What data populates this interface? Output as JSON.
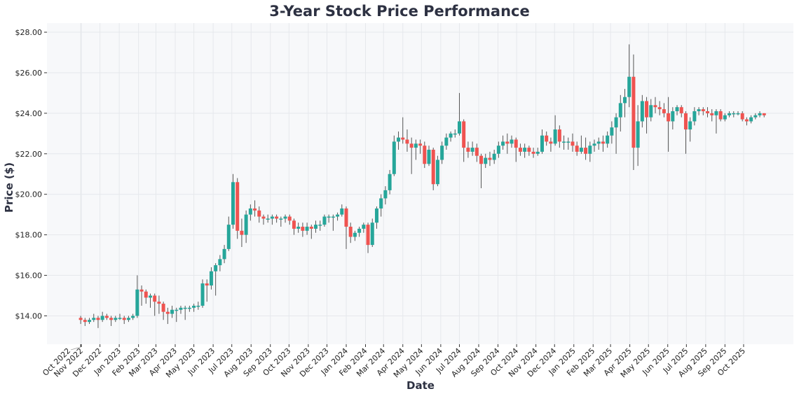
{
  "chart_data": {
    "type": "candlestick",
    "title": "3-Year Stock Price Performance",
    "xlabel": "Date",
    "ylabel": "Price ($)",
    "ylim": [
      12.6,
      28.45
    ],
    "grid": true,
    "colors": {
      "up": "#26a69a",
      "down": "#ef5350",
      "wick": "#555555",
      "plot_bg": "#f7f8fa"
    },
    "y_ticks": [
      {
        "value": 14,
        "label": "$14.00"
      },
      {
        "value": 16,
        "label": "$16.00"
      },
      {
        "value": 18,
        "label": "$18.00"
      },
      {
        "value": 20,
        "label": "$20.00"
      },
      {
        "value": 22,
        "label": "$22.00"
      },
      {
        "value": 24,
        "label": "$24.00"
      },
      {
        "value": 26,
        "label": "$26.00"
      },
      {
        "value": 28,
        "label": "$28.00"
      }
    ],
    "x_ticks": [
      {
        "date": "2022-10-31",
        "label": "Oct 2022"
      },
      {
        "date": "2022-11-01",
        "label": "Nov 2022"
      },
      {
        "date": "2022-12-01",
        "label": "Dec 2022"
      },
      {
        "date": "2023-01-01",
        "label": "Jan 2023"
      },
      {
        "date": "2023-02-01",
        "label": "Feb 2023"
      },
      {
        "date": "2023-03-01",
        "label": "Mar 2023"
      },
      {
        "date": "2023-04-01",
        "label": "Apr 2023"
      },
      {
        "date": "2023-05-01",
        "label": "May 2023"
      },
      {
        "date": "2023-06-01",
        "label": "Jun 2023"
      },
      {
        "date": "2023-07-01",
        "label": "Jul 2023"
      },
      {
        "date": "2023-08-01",
        "label": "Aug 2023"
      },
      {
        "date": "2023-09-01",
        "label": "Sep 2023"
      },
      {
        "date": "2023-10-01",
        "label": "Oct 2023"
      },
      {
        "date": "2023-11-01",
        "label": "Nov 2023"
      },
      {
        "date": "2023-12-01",
        "label": "Dec 2023"
      },
      {
        "date": "2024-01-01",
        "label": "Jan 2024"
      },
      {
        "date": "2024-02-01",
        "label": "Feb 2024"
      },
      {
        "date": "2024-03-01",
        "label": "Mar 2024"
      },
      {
        "date": "2024-04-01",
        "label": "Apr 2024"
      },
      {
        "date": "2024-05-01",
        "label": "May 2024"
      },
      {
        "date": "2024-06-01",
        "label": "Jun 2024"
      },
      {
        "date": "2024-07-01",
        "label": "Jul 2024"
      },
      {
        "date": "2024-08-01",
        "label": "Aug 2024"
      },
      {
        "date": "2024-09-01",
        "label": "Sep 2024"
      },
      {
        "date": "2024-10-01",
        "label": "Oct 2024"
      },
      {
        "date": "2024-11-01",
        "label": "Nov 2024"
      },
      {
        "date": "2024-12-01",
        "label": "Dec 2024"
      },
      {
        "date": "2025-01-01",
        "label": "Jan 2025"
      },
      {
        "date": "2025-02-01",
        "label": "Feb 2025"
      },
      {
        "date": "2025-03-01",
        "label": "Mar 2025"
      },
      {
        "date": "2025-04-01",
        "label": "Apr 2025"
      },
      {
        "date": "2025-05-01",
        "label": "May 2025"
      },
      {
        "date": "2025-06-01",
        "label": "Jun 2025"
      },
      {
        "date": "2025-07-01",
        "label": "Jul 2025"
      },
      {
        "date": "2025-08-01",
        "label": "Aug 2025"
      },
      {
        "date": "2025-09-01",
        "label": "Sep 2025"
      },
      {
        "date": "2025-10-01",
        "label": "Oct 2025"
      }
    ],
    "candle_fields": [
      "date",
      "open",
      "high",
      "low",
      "close"
    ],
    "candles": [
      [
        "2022-10-31",
        13.9,
        14.0,
        13.6,
        13.8
      ],
      [
        "2022-11-07",
        13.8,
        13.9,
        13.5,
        13.7
      ],
      [
        "2022-11-14",
        13.7,
        13.9,
        13.6,
        13.8
      ],
      [
        "2022-11-21",
        13.8,
        14.1,
        13.7,
        13.9
      ],
      [
        "2022-11-28",
        13.9,
        14.0,
        13.4,
        13.8
      ],
      [
        "2022-12-05",
        13.8,
        14.2,
        13.7,
        14.0
      ],
      [
        "2022-12-12",
        14.0,
        14.1,
        13.8,
        13.9
      ],
      [
        "2022-12-19",
        13.9,
        14.0,
        13.5,
        13.8
      ],
      [
        "2022-12-26",
        13.8,
        14.0,
        13.7,
        13.9
      ],
      [
        "2023-01-02",
        13.9,
        14.1,
        13.8,
        13.9
      ],
      [
        "2023-01-09",
        13.9,
        14.0,
        13.6,
        13.8
      ],
      [
        "2023-01-16",
        13.8,
        14.0,
        13.7,
        13.9
      ],
      [
        "2023-01-23",
        13.9,
        14.1,
        13.8,
        14.0
      ],
      [
        "2023-01-30",
        14.0,
        16.0,
        13.9,
        15.3
      ],
      [
        "2023-02-06",
        15.3,
        15.5,
        14.5,
        15.2
      ],
      [
        "2023-02-13",
        15.2,
        15.3,
        14.6,
        14.9
      ],
      [
        "2023-02-20",
        14.9,
        15.1,
        14.4,
        15.0
      ],
      [
        "2023-02-27",
        15.0,
        15.1,
        14.0,
        14.7
      ],
      [
        "2023-03-06",
        14.7,
        15.0,
        14.1,
        14.6
      ],
      [
        "2023-03-13",
        14.6,
        14.7,
        13.8,
        14.2
      ],
      [
        "2023-03-20",
        14.2,
        14.4,
        13.6,
        14.1
      ],
      [
        "2023-03-27",
        14.1,
        14.5,
        13.9,
        14.3
      ],
      [
        "2023-04-03",
        14.3,
        14.4,
        13.7,
        14.3
      ],
      [
        "2023-04-10",
        14.3,
        14.5,
        14.1,
        14.4
      ],
      [
        "2023-04-17",
        14.4,
        14.5,
        13.8,
        14.4
      ],
      [
        "2023-04-24",
        14.4,
        14.5,
        14.2,
        14.4
      ],
      [
        "2023-05-01",
        14.4,
        14.6,
        14.2,
        14.5
      ],
      [
        "2023-05-08",
        14.5,
        14.7,
        14.3,
        14.5
      ],
      [
        "2023-05-15",
        14.5,
        15.8,
        14.4,
        15.6
      ],
      [
        "2023-05-22",
        15.6,
        15.8,
        14.7,
        15.5
      ],
      [
        "2023-05-29",
        15.5,
        16.4,
        15.3,
        16.2
      ],
      [
        "2023-06-05",
        16.2,
        16.6,
        15.0,
        16.5
      ],
      [
        "2023-06-12",
        16.5,
        17.0,
        16.2,
        16.8
      ],
      [
        "2023-06-19",
        16.8,
        17.5,
        16.6,
        17.3
      ],
      [
        "2023-06-26",
        17.3,
        18.9,
        17.2,
        18.5
      ],
      [
        "2023-07-03",
        18.5,
        21.0,
        18.3,
        20.6
      ],
      [
        "2023-07-10",
        20.6,
        20.8,
        17.8,
        18.2
      ],
      [
        "2023-07-17",
        18.2,
        18.8,
        17.4,
        18.0
      ],
      [
        "2023-07-24",
        18.0,
        19.2,
        17.6,
        19.0
      ],
      [
        "2023-07-31",
        19.0,
        19.5,
        18.7,
        19.3
      ],
      [
        "2023-08-07",
        19.3,
        19.7,
        18.9,
        19.2
      ],
      [
        "2023-08-14",
        19.2,
        19.4,
        18.6,
        18.9
      ],
      [
        "2023-08-21",
        18.9,
        19.0,
        18.5,
        18.8
      ],
      [
        "2023-08-28",
        18.8,
        19.0,
        18.6,
        18.8
      ],
      [
        "2023-09-04",
        18.8,
        19.0,
        18.5,
        18.9
      ],
      [
        "2023-09-11",
        18.9,
        19.0,
        18.6,
        18.8
      ],
      [
        "2023-09-18",
        18.8,
        18.9,
        18.4,
        18.8
      ],
      [
        "2023-09-25",
        18.8,
        19.0,
        18.6,
        18.9
      ],
      [
        "2023-10-02",
        18.9,
        19.0,
        18.5,
        18.7
      ],
      [
        "2023-10-09",
        18.7,
        18.8,
        18.0,
        18.3
      ],
      [
        "2023-10-16",
        18.3,
        18.6,
        18.1,
        18.4
      ],
      [
        "2023-10-23",
        18.4,
        18.6,
        17.9,
        18.2
      ],
      [
        "2023-10-30",
        18.2,
        18.6,
        18.0,
        18.4
      ],
      [
        "2023-11-06",
        18.4,
        18.5,
        17.8,
        18.3
      ],
      [
        "2023-11-13",
        18.3,
        18.7,
        18.1,
        18.5
      ],
      [
        "2023-11-20",
        18.5,
        18.7,
        18.2,
        18.5
      ],
      [
        "2023-11-27",
        18.5,
        19.0,
        18.4,
        18.9
      ],
      [
        "2023-12-04",
        18.9,
        19.0,
        18.6,
        18.9
      ],
      [
        "2023-12-11",
        18.9,
        19.0,
        18.2,
        18.9
      ],
      [
        "2023-12-18",
        18.9,
        19.1,
        18.7,
        19.0
      ],
      [
        "2023-12-25",
        19.0,
        19.5,
        18.9,
        19.3
      ],
      [
        "2024-01-01",
        19.3,
        19.4,
        17.3,
        18.4
      ],
      [
        "2024-01-08",
        18.4,
        18.6,
        17.6,
        17.9
      ],
      [
        "2024-01-15",
        17.9,
        18.2,
        17.7,
        18.1
      ],
      [
        "2024-01-22",
        18.1,
        18.4,
        17.9,
        18.3
      ],
      [
        "2024-01-29",
        18.3,
        18.6,
        18.1,
        18.5
      ],
      [
        "2024-02-05",
        18.5,
        18.6,
        17.1,
        17.5
      ],
      [
        "2024-02-12",
        17.5,
        18.8,
        17.4,
        18.6
      ],
      [
        "2024-02-19",
        18.6,
        19.4,
        18.3,
        19.3
      ],
      [
        "2024-02-26",
        19.3,
        20.0,
        18.9,
        19.8
      ],
      [
        "2024-03-04",
        19.8,
        20.4,
        19.5,
        20.2
      ],
      [
        "2024-03-11",
        20.2,
        21.2,
        20.0,
        21.0
      ],
      [
        "2024-03-18",
        21.0,
        22.9,
        20.9,
        22.6
      ],
      [
        "2024-03-25",
        22.6,
        23.1,
        22.2,
        22.8
      ],
      [
        "2024-04-01",
        22.8,
        23.8,
        22.5,
        22.7
      ],
      [
        "2024-04-08",
        22.7,
        23.2,
        22.1,
        22.5
      ],
      [
        "2024-04-15",
        22.5,
        22.8,
        21.0,
        22.3
      ],
      [
        "2024-04-22",
        22.3,
        22.7,
        21.7,
        22.5
      ],
      [
        "2024-04-29",
        22.5,
        22.7,
        22.0,
        22.4
      ],
      [
        "2024-05-06",
        22.4,
        22.6,
        21.3,
        21.5
      ],
      [
        "2024-05-13",
        21.5,
        22.4,
        21.4,
        22.2
      ],
      [
        "2024-05-20",
        22.2,
        22.3,
        20.2,
        20.5
      ],
      [
        "2024-05-27",
        20.5,
        21.9,
        20.4,
        21.7
      ],
      [
        "2024-06-03",
        21.7,
        22.6,
        21.5,
        22.4
      ],
      [
        "2024-06-10",
        22.4,
        23.0,
        22.2,
        22.8
      ],
      [
        "2024-06-17",
        22.8,
        23.1,
        22.6,
        23.0
      ],
      [
        "2024-06-24",
        23.0,
        23.2,
        22.8,
        23.0
      ],
      [
        "2024-07-01",
        23.0,
        25.0,
        22.9,
        23.6
      ],
      [
        "2024-07-08",
        23.6,
        23.7,
        21.6,
        22.3
      ],
      [
        "2024-07-15",
        22.3,
        22.6,
        21.8,
        22.1
      ],
      [
        "2024-07-22",
        22.1,
        22.6,
        21.9,
        22.3
      ],
      [
        "2024-07-29",
        22.3,
        22.5,
        21.6,
        21.9
      ],
      [
        "2024-08-05",
        21.9,
        22.0,
        20.3,
        21.5
      ],
      [
        "2024-08-12",
        21.5,
        22.0,
        21.3,
        21.8
      ],
      [
        "2024-08-19",
        21.8,
        22.1,
        21.4,
        21.7
      ],
      [
        "2024-08-26",
        21.7,
        22.2,
        21.5,
        22.0
      ],
      [
        "2024-09-02",
        22.0,
        22.6,
        21.8,
        22.4
      ],
      [
        "2024-09-09",
        22.4,
        22.9,
        22.2,
        22.6
      ],
      [
        "2024-09-16",
        22.6,
        23.0,
        22.0,
        22.5
      ],
      [
        "2024-09-23",
        22.5,
        22.9,
        22.3,
        22.7
      ],
      [
        "2024-09-30",
        22.7,
        22.8,
        21.6,
        22.3
      ],
      [
        "2024-10-07",
        22.3,
        22.5,
        21.9,
        22.1
      ],
      [
        "2024-10-14",
        22.1,
        22.5,
        21.8,
        22.3
      ],
      [
        "2024-10-21",
        22.3,
        22.4,
        21.9,
        22.1
      ],
      [
        "2024-10-28",
        22.1,
        22.3,
        21.8,
        22.0
      ],
      [
        "2024-11-04",
        22.0,
        22.3,
        21.9,
        22.1
      ],
      [
        "2024-11-11",
        22.1,
        23.2,
        22.0,
        22.9
      ],
      [
        "2024-11-18",
        22.9,
        23.1,
        22.4,
        22.6
      ],
      [
        "2024-11-25",
        22.6,
        22.8,
        22.1,
        22.5
      ],
      [
        "2024-12-02",
        22.5,
        23.9,
        22.4,
        23.2
      ],
      [
        "2024-12-09",
        23.2,
        23.4,
        22.3,
        22.6
      ],
      [
        "2024-12-16",
        22.6,
        22.9,
        22.2,
        22.6
      ],
      [
        "2024-12-23",
        22.6,
        22.8,
        22.2,
        22.6
      ],
      [
        "2024-12-30",
        22.6,
        23.0,
        22.1,
        22.4
      ],
      [
        "2025-01-06",
        22.4,
        22.6,
        21.9,
        22.1
      ],
      [
        "2025-01-13",
        22.1,
        22.9,
        22.0,
        22.3
      ],
      [
        "2025-01-20",
        22.3,
        22.8,
        21.7,
        22.0
      ],
      [
        "2025-01-27",
        22.0,
        22.6,
        21.6,
        22.4
      ],
      [
        "2025-02-03",
        22.4,
        22.7,
        22.1,
        22.5
      ],
      [
        "2025-02-10",
        22.5,
        22.8,
        22.2,
        22.6
      ],
      [
        "2025-02-17",
        22.6,
        22.9,
        22.1,
        22.5
      ],
      [
        "2025-02-24",
        22.5,
        23.1,
        22.3,
        22.9
      ],
      [
        "2025-03-03",
        22.9,
        23.6,
        22.5,
        23.3
      ],
      [
        "2025-03-10",
        23.3,
        24.0,
        22.0,
        23.8
      ],
      [
        "2025-03-17",
        23.8,
        24.9,
        23.1,
        24.5
      ],
      [
        "2025-03-24",
        24.5,
        25.2,
        23.8,
        24.8
      ],
      [
        "2025-03-31",
        24.8,
        27.4,
        24.3,
        25.8
      ],
      [
        "2025-04-07",
        25.8,
        26.9,
        21.2,
        22.3
      ],
      [
        "2025-04-14",
        22.3,
        24.4,
        21.4,
        23.6
      ],
      [
        "2025-04-21",
        23.6,
        24.9,
        23.3,
        24.6
      ],
      [
        "2025-04-28",
        24.6,
        24.8,
        23.0,
        23.8
      ],
      [
        "2025-05-05",
        23.8,
        24.7,
        23.6,
        24.4
      ],
      [
        "2025-05-12",
        24.4,
        24.8,
        24.0,
        24.3
      ],
      [
        "2025-05-19",
        24.3,
        24.6,
        23.9,
        24.2
      ],
      [
        "2025-05-26",
        24.2,
        24.5,
        23.8,
        24.0
      ],
      [
        "2025-06-02",
        24.0,
        24.8,
        22.1,
        23.6
      ],
      [
        "2025-06-09",
        23.6,
        24.3,
        23.2,
        24.1
      ],
      [
        "2025-06-16",
        24.1,
        24.4,
        23.9,
        24.3
      ],
      [
        "2025-06-23",
        24.3,
        24.4,
        23.8,
        24.0
      ],
      [
        "2025-06-30",
        24.0,
        24.1,
        22.0,
        23.2
      ],
      [
        "2025-07-07",
        23.2,
        23.8,
        22.6,
        23.6
      ],
      [
        "2025-07-14",
        23.6,
        24.3,
        23.4,
        24.1
      ],
      [
        "2025-07-21",
        24.1,
        24.3,
        23.9,
        24.2
      ],
      [
        "2025-07-28",
        24.2,
        24.3,
        23.9,
        24.1
      ],
      [
        "2025-08-04",
        24.1,
        24.3,
        23.8,
        24.0
      ],
      [
        "2025-08-11",
        24.0,
        24.2,
        23.6,
        23.9
      ],
      [
        "2025-08-18",
        23.9,
        24.2,
        23.0,
        24.1
      ],
      [
        "2025-08-25",
        24.1,
        24.2,
        23.6,
        23.7
      ],
      [
        "2025-09-01",
        23.7,
        24.0,
        23.6,
        23.9
      ],
      [
        "2025-09-08",
        23.9,
        24.1,
        23.8,
        24.0
      ],
      [
        "2025-09-15",
        24.0,
        24.1,
        23.8,
        24.0
      ],
      [
        "2025-09-22",
        24.0,
        24.1,
        23.9,
        24.0
      ],
      [
        "2025-09-29",
        24.0,
        24.1,
        23.6,
        23.7
      ],
      [
        "2025-10-06",
        23.7,
        23.8,
        23.4,
        23.6
      ],
      [
        "2025-10-13",
        23.6,
        23.9,
        23.5,
        23.8
      ],
      [
        "2025-10-20",
        23.8,
        24.0,
        23.7,
        23.9
      ],
      [
        "2025-10-27",
        23.9,
        24.1,
        23.8,
        24.0
      ],
      [
        "2025-11-03",
        24.0,
        24.0,
        23.8,
        23.9
      ]
    ]
  }
}
